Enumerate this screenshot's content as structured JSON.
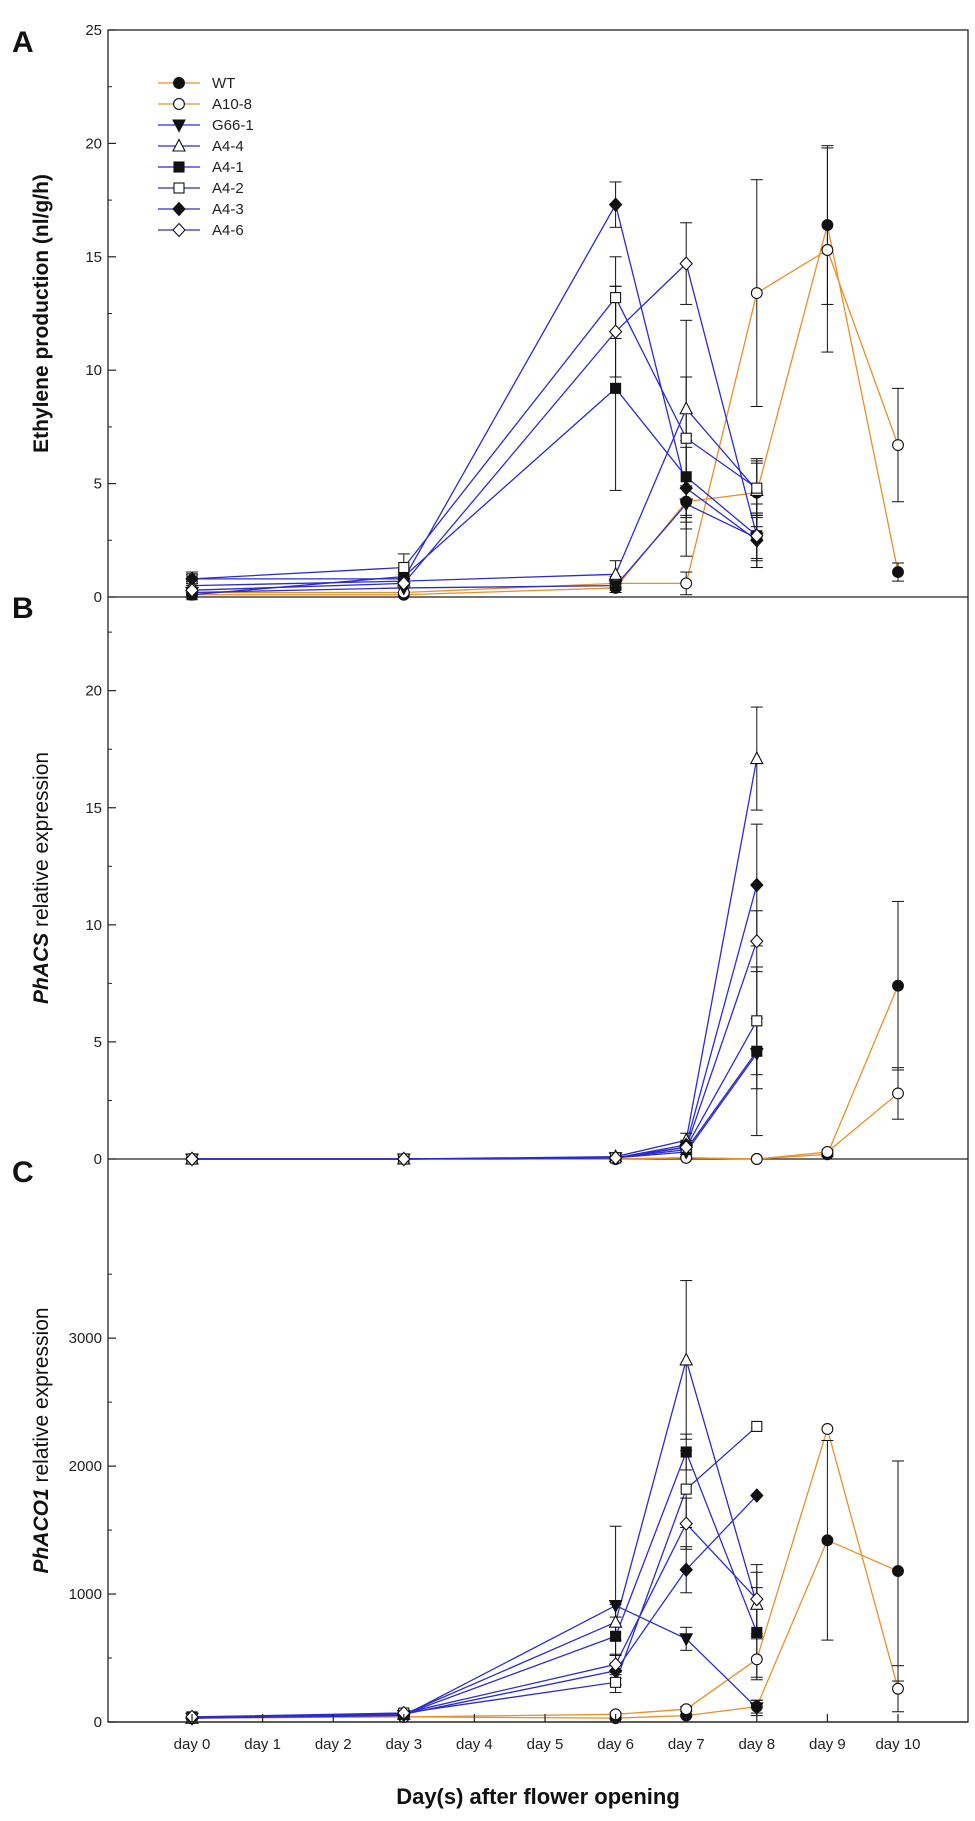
{
  "figure": {
    "xlabel": "Day(s) after flower opening"
  },
  "series_styles": {
    "WT": {
      "color": "#e8902a",
      "marker": "circle",
      "filled": true
    },
    "A10-8": {
      "color": "#e8902a",
      "marker": "circle",
      "filled": false
    },
    "G66-1": {
      "color": "#2c2ccc",
      "marker": "triangle-down",
      "filled": true
    },
    "A4-4": {
      "color": "#2c2ccc",
      "marker": "triangle-up",
      "filled": false
    },
    "A4-1": {
      "color": "#2c2ccc",
      "marker": "square",
      "filled": true
    },
    "A4-2": {
      "color": "#2c2ccc",
      "marker": "square",
      "filled": false
    },
    "A4-3": {
      "color": "#2c2ccc",
      "marker": "diamond",
      "filled": true
    },
    "A4-6": {
      "color": "#2c2ccc",
      "marker": "diamond",
      "filled": false
    }
  },
  "chart_data": [
    {
      "panel": "A",
      "type": "line",
      "ylabel": "Ethylene production (nl/g/h)",
      "ylabel_italic_prefix": "",
      "ylim": [
        0,
        25
      ],
      "yticks": [
        0,
        5,
        10,
        15,
        20,
        25
      ],
      "categories": [
        "day 0",
        "day 1",
        "day 2",
        "day 3",
        "day 4",
        "day 5",
        "day 6",
        "day 7",
        "day 8",
        "day 9",
        "day 10"
      ],
      "legend": [
        "WT",
        "A10-8",
        "G66-1",
        "A4-4",
        "A4-1",
        "A4-2",
        "A4-3",
        "A4-6"
      ],
      "series": [
        {
          "name": "WT",
          "x": [
            0,
            3,
            6,
            7,
            8,
            9,
            10
          ],
          "values": [
            0.1,
            0.1,
            0.4,
            4.2,
            4.6,
            16.4,
            1.1
          ],
          "err": [
            0,
            0,
            0.2,
            0.6,
            1.5,
            3.5,
            0.4
          ]
        },
        {
          "name": "A10-8",
          "x": [
            0,
            3,
            6,
            7,
            8,
            9,
            10
          ],
          "values": [
            0.2,
            0.2,
            0.6,
            0.6,
            13.4,
            15.3,
            6.7
          ],
          "err": [
            0,
            0,
            0.3,
            0.5,
            5.0,
            4.5,
            2.5
          ]
        },
        {
          "name": "G66-1",
          "x": [
            0,
            3,
            6,
            7,
            8
          ],
          "values": [
            0.2,
            0.4,
            0.5,
            4.1,
            2.6
          ],
          "err": [
            0.1,
            0.2,
            0.3,
            0.8,
            1.0
          ]
        },
        {
          "name": "A4-4",
          "x": [
            0,
            3,
            6,
            7,
            8
          ],
          "values": [
            0.5,
            0.7,
            1.0,
            8.3,
            4.7
          ],
          "err": [
            0.2,
            0.3,
            0.6,
            1.4,
            1.2
          ]
        },
        {
          "name": "A4-1",
          "x": [
            0,
            3,
            6,
            7,
            8
          ],
          "values": [
            0.1,
            0.9,
            9.2,
            5.3,
            2.7
          ],
          "err": [
            0.1,
            0.3,
            4.5,
            1.8,
            1.0
          ]
        },
        {
          "name": "A4-2",
          "x": [
            0,
            3,
            6,
            7,
            8
          ],
          "values": [
            0.8,
            1.3,
            13.2,
            7.0,
            4.8
          ],
          "err": [
            0.2,
            0.6,
            1.8,
            5.2,
            1.2
          ]
        },
        {
          "name": "A4-3",
          "x": [
            0,
            3,
            6,
            7,
            8
          ],
          "values": [
            0.8,
            0.8,
            17.3,
            4.8,
            2.5
          ],
          "err": [
            0.3,
            0.3,
            1.0,
            1.8,
            1.2
          ]
        },
        {
          "name": "A4-6",
          "x": [
            0,
            3,
            6,
            7,
            8
          ],
          "values": [
            0.3,
            0.6,
            11.7,
            14.7,
            2.7
          ],
          "err": [
            0.1,
            0.2,
            2.0,
            1.8,
            1.4
          ]
        }
      ]
    },
    {
      "panel": "B",
      "type": "line",
      "ylabel": " relative expression",
      "ylabel_italic_prefix": "PhACS",
      "ylim": [
        0,
        24
      ],
      "yticks": [
        0,
        5,
        10,
        15,
        20
      ],
      "categories": [
        "day 0",
        "day 1",
        "day 2",
        "day 3",
        "day 4",
        "day 5",
        "day 6",
        "day 7",
        "day 8",
        "day 9",
        "day 10"
      ],
      "legend": [],
      "series": [
        {
          "name": "WT",
          "x": [
            0,
            3,
            6,
            7,
            8,
            9,
            10
          ],
          "values": [
            0,
            0,
            0,
            0.05,
            0,
            0.2,
            7.4
          ],
          "err": [
            0,
            0,
            0,
            0,
            0,
            0.1,
            3.6
          ]
        },
        {
          "name": "A10-8",
          "x": [
            0,
            3,
            6,
            7,
            8,
            9,
            10
          ],
          "values": [
            0,
            0,
            0,
            0.05,
            0,
            0.3,
            2.8
          ],
          "err": [
            0,
            0,
            0,
            0,
            0,
            0.1,
            1.1
          ]
        },
        {
          "name": "G66-1",
          "x": [
            0,
            3,
            6,
            7,
            8
          ],
          "values": [
            0,
            0,
            0.05,
            0.3,
            4.5
          ],
          "err": [
            0,
            0,
            0,
            0.2,
            1.5
          ]
        },
        {
          "name": "A4-4",
          "x": [
            0,
            3,
            6,
            7,
            8
          ],
          "values": [
            0,
            0,
            0.1,
            0.8,
            17.1
          ],
          "err": [
            0,
            0,
            0,
            0.3,
            2.2
          ]
        },
        {
          "name": "A4-1",
          "x": [
            0,
            3,
            6,
            7,
            8
          ],
          "values": [
            0,
            0,
            0.05,
            0.4,
            4.6
          ],
          "err": [
            0,
            0,
            0,
            0.2,
            3.6
          ]
        },
        {
          "name": "A4-2",
          "x": [
            0,
            3,
            6,
            7,
            8
          ],
          "values": [
            0,
            0,
            0.05,
            0.5,
            5.9
          ],
          "err": [
            0,
            0,
            0,
            0.2,
            2.3
          ]
        },
        {
          "name": "A4-3",
          "x": [
            0,
            3,
            6,
            7,
            8
          ],
          "values": [
            0,
            0,
            0.05,
            0.6,
            11.7
          ],
          "err": [
            0,
            0,
            0,
            0.2,
            2.6
          ]
        },
        {
          "name": "A4-6",
          "x": [
            0,
            3,
            6,
            7,
            8
          ],
          "values": [
            0,
            0,
            0.05,
            0.5,
            9.3
          ],
          "err": [
            0,
            0,
            0,
            0.2,
            1.3
          ]
        }
      ]
    },
    {
      "panel": "C",
      "type": "line",
      "ylabel": " relative expression",
      "ylabel_italic_prefix": "PhACO1",
      "ylim": [
        0,
        4400
      ],
      "yticks": [
        0,
        1000,
        2000,
        3000
      ],
      "categories": [
        "day 0",
        "day 1",
        "day 2",
        "day 3",
        "day 4",
        "day 5",
        "day 6",
        "day 7",
        "day 8",
        "day 9",
        "day 10"
      ],
      "legend": [],
      "series": [
        {
          "name": "WT",
          "x": [
            0,
            3,
            6,
            7,
            8,
            9,
            10
          ],
          "values": [
            30,
            40,
            30,
            50,
            120,
            1420,
            1180
          ],
          "err": [
            0,
            0,
            10,
            10,
            50,
            780,
            860
          ]
        },
        {
          "name": "A10-8",
          "x": [
            0,
            3,
            6,
            7,
            8,
            9,
            10
          ],
          "values": [
            30,
            40,
            60,
            100,
            490,
            2290,
            260
          ],
          "err": [
            0,
            0,
            10,
            20,
            160,
            0,
            180
          ]
        },
        {
          "name": "G66-1",
          "x": [
            0,
            3,
            6,
            7,
            8
          ],
          "values": [
            30,
            50,
            910,
            650,
            110
          ],
          "err": [
            0,
            10,
            620,
            90,
            60
          ]
        },
        {
          "name": "A4-4",
          "x": [
            0,
            3,
            6,
            7,
            8
          ],
          "values": [
            30,
            60,
            780,
            2830,
            920
          ],
          "err": [
            0,
            10,
            140,
            620,
            250
          ]
        },
        {
          "name": "A4-1",
          "x": [
            0,
            3,
            6,
            7,
            8
          ],
          "values": [
            40,
            60,
            670,
            2110,
            700
          ],
          "err": [
            0,
            10,
            150,
            140,
            350
          ]
        },
        {
          "name": "A4-2",
          "x": [
            0,
            3,
            6,
            7,
            8
          ],
          "values": [
            30,
            70,
            310,
            1820,
            2310
          ],
          "err": [
            0,
            10,
            80,
            300,
            0
          ]
        },
        {
          "name": "A4-3",
          "x": [
            0,
            3,
            6,
            7,
            8
          ],
          "values": [
            30,
            60,
            400,
            1190,
            1770
          ],
          "err": [
            0,
            10,
            60,
            180,
            0
          ]
        },
        {
          "name": "A4-6",
          "x": [
            0,
            3,
            6,
            7,
            8
          ],
          "values": [
            40,
            70,
            450,
            1550,
            960
          ],
          "err": [
            0,
            10,
            80,
            200,
            270
          ]
        }
      ]
    }
  ]
}
